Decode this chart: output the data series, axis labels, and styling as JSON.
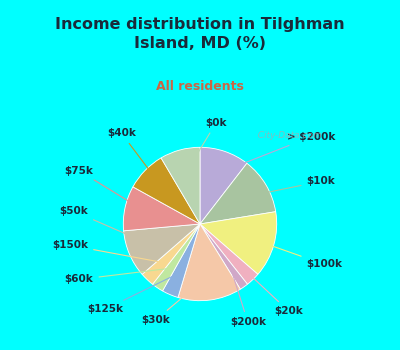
{
  "title": "Income distribution in Tilghman\nIsland, MD (%)",
  "subtitle": "All residents",
  "title_color": "#1a2a3a",
  "subtitle_color": "#cc6644",
  "bg_cyan": "#00FFFF",
  "bg_chart": "#c8e8d8",
  "slices": [
    {
      "label": "> $200k",
      "value": 10.5,
      "color": "#b8aad8"
    },
    {
      "label": "$10k",
      "value": 12.0,
      "color": "#a8c4a0"
    },
    {
      "label": "$100k",
      "value": 14.0,
      "color": "#f0f080"
    },
    {
      "label": "$20k",
      "value": 3.0,
      "color": "#f0b0c0"
    },
    {
      "label": "$200k",
      "value": 1.8,
      "color": "#d0a8c8"
    },
    {
      "label": "$30k",
      "value": 13.5,
      "color": "#f5c8a8"
    },
    {
      "label": "$125k",
      "value": 3.5,
      "color": "#8ab0e0"
    },
    {
      "label": "$60k",
      "value": 2.5,
      "color": "#c0e8a0"
    },
    {
      "label": "$150k",
      "value": 3.0,
      "color": "#f8d890"
    },
    {
      "label": "$50k",
      "value": 10.0,
      "color": "#c8c0a8"
    },
    {
      "label": "$75k",
      "value": 9.5,
      "color": "#e89090"
    },
    {
      "label": "$40k",
      "value": 8.5,
      "color": "#c89820"
    },
    {
      "label": "$0k",
      "value": 8.5,
      "color": "#b8d4b0"
    }
  ],
  "watermark": "  City-Data.com",
  "label_fontsize": 7.5,
  "title_fontsize": 11.5,
  "subtitle_fontsize": 9
}
